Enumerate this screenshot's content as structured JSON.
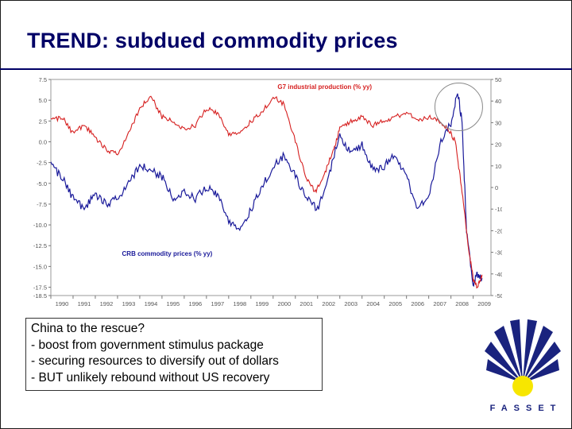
{
  "slide": {
    "title": "TREND: subdued commodity prices",
    "callout_lines": [
      "China to the rescue?",
      "- boost from government stimulus package",
      "- securing resources to diversify out of dollars",
      "- BUT unlikely rebound without US recovery"
    ],
    "logo_text": "FASSET"
  },
  "colors": {
    "title": "#000066",
    "red_series": "#d62020",
    "blue_series": "#1a1a9a",
    "logo_blue": "#1a237e",
    "logo_yellow": "#f7e600"
  },
  "chart_data": {
    "type": "line",
    "title": "",
    "x_ticks": [
      "1990",
      "1991",
      "1992",
      "1993",
      "1994",
      "1995",
      "1996",
      "1997",
      "1998",
      "1999",
      "2000",
      "2001",
      "2002",
      "2003",
      "2004",
      "2005",
      "2006",
      "2007",
      "2008",
      "2009"
    ],
    "y_left_ticks": [
      "7.5",
      "5.0",
      "2.5",
      "0.0",
      "-2.5",
      "-5.0",
      "-7.5",
      "-10.0",
      "-12.5",
      "-15.0",
      "-17.5",
      "-18.5"
    ],
    "y_left_range": [
      -18.5,
      7.5
    ],
    "y_right_ticks": [
      "50",
      "40",
      "30",
      "20",
      "10",
      "0",
      "-10",
      "-20",
      "-30",
      "-40",
      "-50"
    ],
    "y_right_range": [
      -50,
      50
    ],
    "grid": false,
    "annotations": [
      "circled peak in 2008"
    ],
    "series": [
      {
        "name": "G7 industrial production (% yy)",
        "axis": "left",
        "x": [
          1990,
          1990.5,
          1991,
          1991.5,
          1992,
          1992.5,
          1993,
          1993.5,
          1994,
          1994.5,
          1995,
          1995.5,
          1996,
          1996.5,
          1997,
          1997.5,
          1998,
          1998.5,
          1999,
          1999.5,
          2000,
          2000.5,
          2001,
          2001.5,
          2001.9,
          2002.3,
          2002.7,
          2003,
          2003.5,
          2004,
          2004.5,
          2005,
          2005.5,
          2006,
          2006.5,
          2007,
          2007.5,
          2007.9,
          2008.2,
          2008.5,
          2008.8,
          2009,
          2009.2,
          2009.4
        ],
        "y": [
          2.5,
          3.0,
          1.0,
          2.0,
          0.5,
          -1.0,
          -1.5,
          1.0,
          4.0,
          5.5,
          3.0,
          2.5,
          1.5,
          2.0,
          4.0,
          3.5,
          1.0,
          1.0,
          2.5,
          3.5,
          5.5,
          4.5,
          0.0,
          -4.5,
          -6.0,
          -4.0,
          -1.0,
          1.5,
          2.5,
          3.0,
          2.0,
          2.5,
          3.0,
          3.5,
          2.5,
          3.0,
          2.5,
          1.5,
          0.0,
          -6.0,
          -13.0,
          -16.5,
          -17.5,
          -16.0
        ]
      },
      {
        "name": "CRB commodity prices (% yy)",
        "axis": "right",
        "x": [
          1990,
          1990.5,
          1991,
          1991.5,
          1992,
          1992.5,
          1993,
          1993.5,
          1994,
          1994.5,
          1995,
          1995.5,
          1996,
          1996.5,
          1997,
          1997.5,
          1998,
          1998.5,
          1999,
          1999.5,
          2000,
          2000.5,
          2001,
          2001.5,
          2002,
          2002.5,
          2003,
          2003.5,
          2004,
          2004.5,
          2005,
          2005.5,
          2006,
          2006.5,
          2007,
          2007.5,
          2008,
          2008.3,
          2008.5,
          2008.7,
          2009,
          2009.2,
          2009.4
        ],
        "y": [
          10,
          5,
          -5,
          -10,
          -3,
          -8,
          -5,
          2,
          10,
          8,
          5,
          -5,
          -2,
          -5,
          0,
          -3,
          -15,
          -20,
          -10,
          0,
          10,
          15,
          5,
          -5,
          -10,
          5,
          25,
          15,
          20,
          8,
          10,
          15,
          5,
          -10,
          -5,
          20,
          30,
          45,
          30,
          -20,
          -45,
          -40,
          -42
        ]
      }
    ],
    "series_labels": [
      "G7 industrial production (% yy)",
      "CRB commodity prices (% yy)"
    ]
  }
}
